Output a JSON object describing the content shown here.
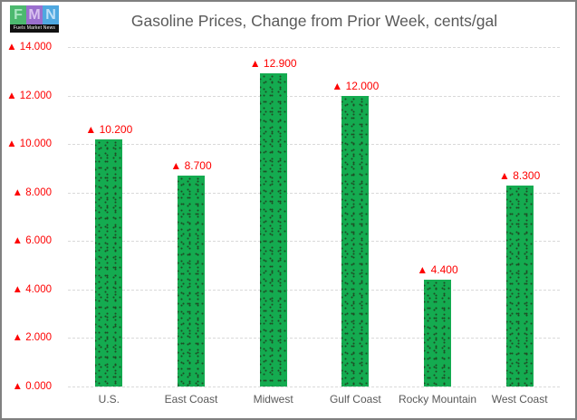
{
  "logo": {
    "caption": "Fuels Market News",
    "letters": [
      {
        "char": "F",
        "bg": "#4cb96f",
        "fg": "#a9e6c1"
      },
      {
        "char": "M",
        "bg": "#9a6fce",
        "fg": "#d9c2f0"
      },
      {
        "char": "N",
        "bg": "#4fa8e0",
        "fg": "#bfe0f7"
      }
    ]
  },
  "chart_data": {
    "type": "bar",
    "title": "Gasoline Prices, Change from Prior Week, cents/gal",
    "categories": [
      "U.S.",
      "East Coast",
      "Midwest",
      "Gulf Coast",
      "Rocky Mountain",
      "West Coast"
    ],
    "values": [
      10.2,
      8.7,
      12.9,
      12.0,
      4.4,
      8.3
    ],
    "bar_labels": [
      "▲ 10.200",
      "▲ 8.700",
      "▲ 12.900",
      "▲ 12.000",
      "▲ 4.400",
      "▲ 8.300"
    ],
    "y_ticks": [
      {
        "value": 0,
        "label": "▲ 0.000"
      },
      {
        "value": 2,
        "label": "▲ 2.000"
      },
      {
        "value": 4,
        "label": "▲ 4.000"
      },
      {
        "value": 6,
        "label": "▲ 6.000"
      },
      {
        "value": 8,
        "label": "▲ 8.000"
      },
      {
        "value": 10,
        "label": "▲ 10.000"
      },
      {
        "value": 12,
        "label": "▲ 12.000"
      },
      {
        "value": 14,
        "label": "▲ 14.000"
      }
    ],
    "ylim": [
      0,
      14
    ],
    "xlabel": "",
    "ylabel": "",
    "grid": "horizontal-dashed",
    "legend": "none",
    "colors": {
      "bar": "#14ab50",
      "bar_dot": "#1e4a23",
      "value_label": "#fe0000",
      "tick_label": "#fe0000",
      "axis_text": "#595959",
      "gridline": "#d9d9d9",
      "title": "#595959",
      "border": "#808080"
    }
  }
}
